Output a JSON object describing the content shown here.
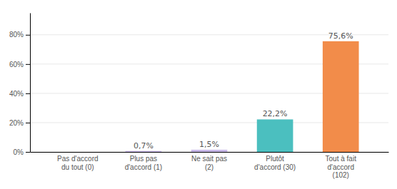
{
  "chart_data": {
    "type": "bar",
    "categories": [
      "Pas d'accord\ndu tout (0)",
      "Plus pas\nd'accord (1)",
      "Ne sait pas\n(2)",
      "Plutôt\nd'accord (30)",
      "Tout à fait\nd'accord\n(102)"
    ],
    "values": [
      0.0,
      0.7,
      1.5,
      22.2,
      75.6
    ],
    "value_labels": [
      null,
      "0,7%",
      "1,5%",
      "22,2%",
      "75,6%"
    ],
    "colors": [
      "#e8e8e8",
      "#c8b8e8",
      "#c8b8e8",
      "#4bbfbf",
      "#f28c4a"
    ],
    "ylim": [
      0,
      95
    ],
    "yticks": [
      {
        "value": 0,
        "label": "0%"
      },
      {
        "value": 20,
        "label": "20%"
      },
      {
        "value": 40,
        "label": "40%"
      },
      {
        "value": 60,
        "label": "60%"
      },
      {
        "value": 80,
        "label": "80%"
      }
    ],
    "grid": true
  }
}
